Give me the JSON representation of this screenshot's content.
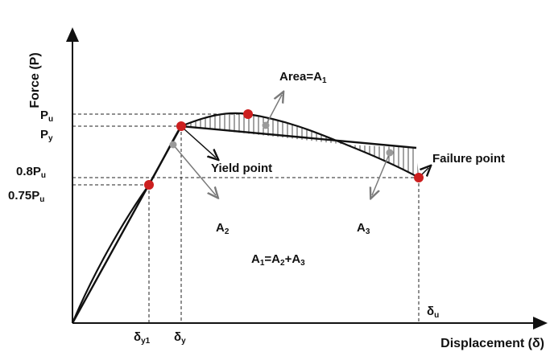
{
  "axes": {
    "y_title": "Force (P)",
    "x_title": "Displacement (δ)"
  },
  "y_labels": [
    {
      "id": "pu",
      "main": "P",
      "sub": "u"
    },
    {
      "id": "py",
      "main": "P",
      "sub": "y"
    },
    {
      "id": "p08",
      "main": "0.8P",
      "sub": "u"
    },
    {
      "id": "p075",
      "main": "0.75P",
      "sub": "u"
    }
  ],
  "x_labels": [
    {
      "id": "dy1",
      "main": "δ",
      "sub": "y1"
    },
    {
      "id": "dy",
      "main": "δ",
      "sub": "y"
    },
    {
      "id": "du",
      "main": "δ",
      "sub": "u"
    }
  ],
  "annotations": {
    "area_a1": {
      "main": "Area=A",
      "sub": "1"
    },
    "yield_point": "Yield point",
    "failure_point": "Failure point",
    "a2": {
      "main": "A",
      "sub": "2"
    },
    "a3": {
      "main": "A",
      "sub": "3"
    },
    "equation": {
      "p1": "A",
      "s1": "1",
      "p2": "=A",
      "s2": "2",
      "p3": "+A",
      "s3": "3"
    }
  },
  "colors": {
    "point": "#cc1f1f",
    "curve": "#111111",
    "arrow": "#8a8a8a",
    "dot": "#9a9a9a"
  }
}
